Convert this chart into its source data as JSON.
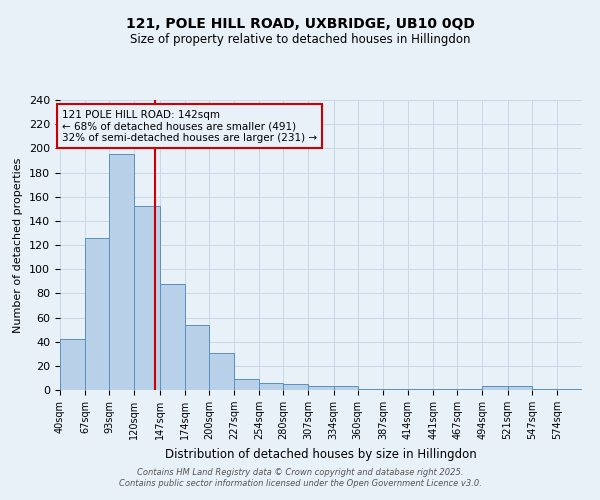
{
  "title1": "121, POLE HILL ROAD, UXBRIDGE, UB10 0QD",
  "title2": "Size of property relative to detached houses in Hillingdon",
  "xlabel": "Distribution of detached houses by size in Hillingdon",
  "ylabel": "Number of detached properties",
  "footer1": "Contains HM Land Registry data © Crown copyright and database right 2025.",
  "footer2": "Contains public sector information licensed under the Open Government Licence v3.0.",
  "annotation_line1": "121 POLE HILL ROAD: 142sqm",
  "annotation_line2": "← 68% of detached houses are smaller (491)",
  "annotation_line3": "32% of semi-detached houses are larger (231) →",
  "property_size": 142,
  "bar_left_edges": [
    40,
    67,
    93,
    120,
    147,
    174,
    200,
    227,
    254,
    280,
    307,
    334,
    360,
    387,
    414,
    441,
    467,
    494,
    521,
    547,
    574
  ],
  "bar_widths": [
    27,
    26,
    27,
    27,
    27,
    26,
    27,
    27,
    26,
    27,
    27,
    26,
    27,
    27,
    27,
    26,
    27,
    27,
    26,
    27,
    27
  ],
  "bar_heights": [
    42,
    126,
    195,
    152,
    88,
    54,
    31,
    9,
    6,
    5,
    3,
    3,
    1,
    1,
    1,
    1,
    1,
    3,
    3,
    1,
    1
  ],
  "bar_color": "#b8d0e8",
  "bar_edge_color": "#5a8fc0",
  "red_line_color": "#cc0000",
  "annotation_box_color": "#cc0000",
  "grid_color": "#c8d8e8",
  "bg_color": "#e8f0f8",
  "ylim": [
    0,
    240
  ],
  "yticks": [
    0,
    20,
    40,
    60,
    80,
    100,
    120,
    140,
    160,
    180,
    200,
    220,
    240
  ]
}
